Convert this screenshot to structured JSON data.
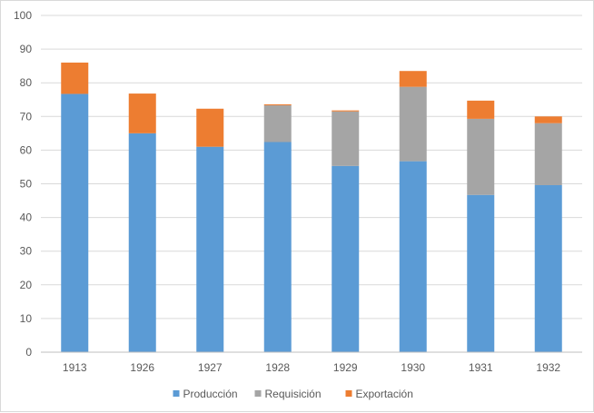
{
  "chart_data": {
    "type": "bar",
    "stacked": true,
    "title": "",
    "xlabel": "",
    "ylabel": "",
    "ylim": [
      0,
      100
    ],
    "yticks": [
      0,
      10,
      20,
      30,
      40,
      50,
      60,
      70,
      80,
      90,
      100
    ],
    "grid": true,
    "legend_position": "bottom",
    "categories": [
      "1913",
      "1926",
      "1927",
      "1928",
      "1929",
      "1930",
      "1931",
      "1932"
    ],
    "series": [
      {
        "name": "Producción",
        "color": "#5b9bd5",
        "values": [
          76.7,
          65.0,
          61.0,
          62.4,
          55.3,
          56.7,
          46.7,
          49.6
        ]
      },
      {
        "name": "Requisición",
        "color": "#a5a5a5",
        "values": [
          0,
          0,
          0,
          10.9,
          16.2,
          22.1,
          22.6,
          18.4
        ]
      },
      {
        "name": "Exportación",
        "color": "#ed7d31",
        "values": [
          9.3,
          11.8,
          11.3,
          0.3,
          0.3,
          4.7,
          5.4,
          2.0
        ]
      }
    ]
  }
}
